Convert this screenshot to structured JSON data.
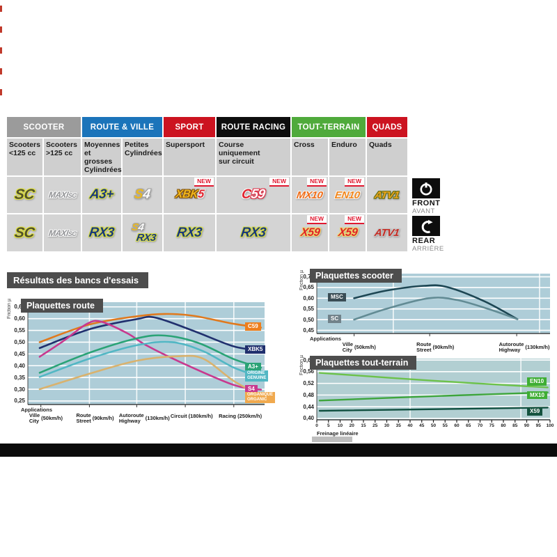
{
  "results_title": "Résultats des bancs d'essais",
  "new_label": "NEW",
  "axle": {
    "front": {
      "en": "FRONT",
      "fr": "AVANT"
    },
    "rear": {
      "en": "REAR",
      "fr": "ARRIÈRE"
    }
  },
  "table": {
    "categories": [
      {
        "label": "SCOOTER",
        "color": "#9b9b9b",
        "span": 2
      },
      {
        "label": "ROUTE & VILLE",
        "color": "#1b74ba",
        "span": 2
      },
      {
        "label": "SPORT",
        "color": "#cc1320",
        "span": 1
      },
      {
        "label": "ROUTE RACING",
        "color": "#0e0e0e",
        "span": 1
      },
      {
        "label": "TOUT-TERRAIN",
        "color": "#4faa3b",
        "span": 2
      },
      {
        "label": "QUADS",
        "color": "#cc1320",
        "span": 1
      }
    ],
    "columns": [
      "Scooters\n<125 cc",
      "Scooters\n>125 cc",
      "Moyennes\net grosses\nCylindrées",
      "Petites\nCylindrées",
      "Supersport",
      "Course\nuniquement\nsur circuit",
      "Cross",
      "Enduro",
      "Quads"
    ],
    "front_row": [
      {
        "logos": [
          {
            "t": "SC",
            "s": "sc"
          }
        ]
      },
      {
        "logos": [
          {
            "t": "MAXI",
            "sub": "SC",
            "s": "maxisc"
          }
        ]
      },
      {
        "logos": [
          {
            "t": "A3+",
            "s": "a3"
          }
        ]
      },
      {
        "logos": [
          {
            "parts": [
              {
                "t": "S",
                "c": "p-gold2"
              },
              {
                "t": "4",
                "c": "p-silver"
              }
            ],
            "s": "s4"
          }
        ]
      },
      {
        "logos": [
          {
            "parts": [
              {
                "t": "XBK",
                "c": "p-gold"
              },
              {
                "t": "5",
                "c": "p-red"
              }
            ],
            "s": "xbk5"
          }
        ],
        "isNew": true
      },
      {
        "logos": [
          {
            "parts": [
              {
                "t": "C",
                "c": "p-red"
              },
              {
                "t": "59",
                "c": "p-wr"
              }
            ],
            "s": "c59"
          }
        ],
        "isNew": true
      },
      {
        "logos": [
          {
            "t": "MX10",
            "s": "mx10"
          }
        ],
        "isNew": true
      },
      {
        "logos": [
          {
            "t": "EN10",
            "s": "en10"
          }
        ],
        "isNew": true
      },
      {
        "logos": [
          {
            "t": "ATV1",
            "s": "atv1a"
          }
        ]
      }
    ],
    "rear_row": [
      {
        "logos": [
          {
            "t": "SC",
            "s": "sc"
          }
        ]
      },
      {
        "logos": [
          {
            "t": "MAXI",
            "sub": "SC",
            "s": "maxisc"
          }
        ]
      },
      {
        "logos": [
          {
            "t": "RX3",
            "s": "rx3"
          }
        ]
      },
      {
        "logos": [
          {
            "parts": [
              {
                "t": "S",
                "c": "p-gold2"
              },
              {
                "t": "4",
                "c": "p-silver"
              }
            ],
            "s": "s4"
          },
          {
            "t": "RX3",
            "s": "rx3"
          }
        ]
      },
      {
        "logos": [
          {
            "t": "RX3",
            "s": "rx3"
          }
        ]
      },
      {
        "logos": [
          {
            "t": "RX3",
            "s": "rx3"
          }
        ]
      },
      {
        "logos": [
          {
            "t": "X59",
            "s": "x59"
          }
        ],
        "isNew": true
      },
      {
        "logos": [
          {
            "t": "X59",
            "s": "x59"
          }
        ],
        "isNew": true
      },
      {
        "logos": [
          {
            "t": "ATV1",
            "s": "atv1b"
          }
        ]
      }
    ]
  },
  "chart_data": [
    {
      "id": "route",
      "type": "line",
      "title": "Plaquettes route",
      "ylabel": "Friction µ",
      "xlabel": "Applications",
      "bg": "#aecdd8",
      "ylim": [
        0.25,
        0.65
      ],
      "yticks": [
        {
          "label": "0,65",
          "v": 0.65
        },
        {
          "label": "0,60",
          "v": 0.6
        },
        {
          "label": "0,55",
          "v": 0.55
        },
        {
          "label": "0,50",
          "v": 0.5
        },
        {
          "label": "0,45",
          "v": 0.45
        },
        {
          "label": "0,40",
          "v": 0.4
        },
        {
          "label": "0,35",
          "v": 0.35
        },
        {
          "label": "0,30",
          "v": 0.3
        },
        {
          "label": "0,25",
          "v": 0.25
        }
      ],
      "xticks": [
        {
          "f": 0.055,
          "lines": [
            "Ville",
            "City"
          ],
          "speed": "(50km/h)"
        },
        {
          "f": 0.26,
          "lines": [
            "Route",
            "Street"
          ],
          "speed": "(90km/h)"
        },
        {
          "f": 0.46,
          "lines": [
            "Autoroute",
            "Highway"
          ],
          "speed": "(130km/h)"
        },
        {
          "f": 0.665,
          "lines": [
            "Circuit"
          ],
          "speed": "(180km/h)"
        },
        {
          "f": 0.87,
          "lines": [
            "Racing"
          ],
          "speed": "(250km/h)"
        }
      ],
      "series": [
        {
          "name": "C59",
          "color": "#e0791d",
          "points": [
            [
              0.05,
              0.5
            ],
            [
              0.26,
              0.575
            ],
            [
              0.46,
              0.61
            ],
            [
              0.58,
              0.62
            ],
            [
              0.7,
              0.612
            ],
            [
              0.87,
              0.578
            ],
            [
              0.985,
              0.562
            ]
          ]
        },
        {
          "name": "XBK5",
          "color": "#20306e",
          "points": [
            [
              0.05,
              0.475
            ],
            [
              0.26,
              0.555
            ],
            [
              0.46,
              0.598
            ],
            [
              0.54,
              0.604
            ],
            [
              0.7,
              0.548
            ],
            [
              0.87,
              0.482
            ],
            [
              0.985,
              0.465
            ]
          ]
        },
        {
          "name": "S4",
          "color": "#c8388e",
          "points": [
            [
              0.05,
              0.438
            ],
            [
              0.15,
              0.505
            ],
            [
              0.25,
              0.578
            ],
            [
              0.31,
              0.587
            ],
            [
              0.42,
              0.538
            ],
            [
              0.5,
              0.487
            ],
            [
              0.66,
              0.408
            ],
            [
              0.87,
              0.318
            ],
            [
              0.985,
              0.298
            ]
          ]
        },
        {
          "name": "A3+",
          "color": "#2aa376",
          "points": [
            [
              0.05,
              0.37
            ],
            [
              0.26,
              0.455
            ],
            [
              0.46,
              0.516
            ],
            [
              0.58,
              0.528
            ],
            [
              0.72,
              0.497
            ],
            [
              0.87,
              0.428
            ],
            [
              0.985,
              0.392
            ]
          ]
        },
        {
          "name": "ORIGINE GENUINE",
          "color": "#52b7c4",
          "points": [
            [
              0.05,
              0.352
            ],
            [
              0.26,
              0.43
            ],
            [
              0.46,
              0.487
            ],
            [
              0.61,
              0.5
            ],
            [
              0.74,
              0.462
            ],
            [
              0.87,
              0.392
            ],
            [
              0.985,
              0.352
            ]
          ]
        },
        {
          "name": "ORGANIQUE ORGANIC",
          "color": "#d9b26e",
          "points": [
            [
              0.05,
              0.3
            ],
            [
              0.26,
              0.366
            ],
            [
              0.46,
              0.421
            ],
            [
              0.63,
              0.44
            ],
            [
              0.74,
              0.43
            ],
            [
              0.87,
              0.335
            ],
            [
              0.985,
              0.272
            ]
          ]
        }
      ],
      "badges": [
        {
          "label": "C59",
          "bg": "#ee7f1d",
          "v": 0.562
        },
        {
          "label": "XBK5",
          "bg": "#20306e",
          "v": 0.465
        },
        {
          "label": "A3+",
          "bg": "#2aa376",
          "v": 0.392
        },
        {
          "lines": [
            "ORIGINE",
            "GENUINE"
          ],
          "bg": "#52b7c4",
          "v": 0.352
        },
        {
          "label": "S4",
          "bg": "#c8388e",
          "v": 0.298
        },
        {
          "lines": [
            "ORGANIQUE",
            "ORGANIC"
          ],
          "bg": "#f0a94e",
          "v": 0.262
        }
      ]
    },
    {
      "id": "scooter",
      "type": "line",
      "title": "Plaquettes scooter",
      "ylabel": "Friction µ",
      "xlabel": "Applications",
      "bg": "#aecdd8",
      "ylim": [
        0.45,
        0.7
      ],
      "yticks": [
        {
          "label": "0,70",
          "v": 0.7
        },
        {
          "label": "0,65",
          "v": 0.65
        },
        {
          "label": "0,60",
          "v": 0.6
        },
        {
          "label": "0,55",
          "v": 0.55
        },
        {
          "label": "0,50",
          "v": 0.5
        },
        {
          "label": "0,45",
          "v": 0.45
        }
      ],
      "xticks": [
        {
          "f": 0.16,
          "lines": [
            "Ville",
            "City"
          ],
          "speed": "(50km/h)"
        },
        {
          "f": 0.484,
          "lines": [
            "Route",
            "Street"
          ],
          "speed": "(90km/h)"
        },
        {
          "f": 0.857,
          "lines": [
            "Autoroute",
            "Highway"
          ],
          "speed": "(130km/h)"
        }
      ],
      "series": [
        {
          "name": "MSC",
          "color": "#1d4653",
          "points": [
            [
              0.16,
              0.6
            ],
            [
              0.3,
              0.636
            ],
            [
              0.46,
              0.658
            ],
            [
              0.56,
              0.652
            ],
            [
              0.72,
              0.585
            ],
            [
              0.86,
              0.502
            ]
          ]
        },
        {
          "name": "SC",
          "color": "#628b94",
          "points": [
            [
              0.16,
              0.5
            ],
            [
              0.3,
              0.551
            ],
            [
              0.48,
              0.6
            ],
            [
              0.6,
              0.592
            ],
            [
              0.74,
              0.548
            ],
            [
              0.86,
              0.502
            ]
          ]
        }
      ],
      "badges": [
        {
          "label": "MSC",
          "bg": "#3a4d55",
          "v": 0.6
        },
        {
          "label": "SC",
          "bg": "#71828a",
          "v": 0.5
        }
      ]
    },
    {
      "id": "tout",
      "type": "line",
      "title": "Plaquettes tout-terrain",
      "ylabel": "Friction µ",
      "xlabel": "Freinage linéaire",
      "bg": "#b2cfd2",
      "ylim": [
        0.4,
        0.6
      ],
      "yticks": [
        {
          "label": "0,60",
          "v": 0.6
        },
        {
          "label": "0,56",
          "v": 0.56
        },
        {
          "label": "0,52",
          "v": 0.52
        },
        {
          "label": "0,48",
          "v": 0.48
        },
        {
          "label": "0,44",
          "v": 0.44
        },
        {
          "label": "0,40",
          "v": 0.4
        }
      ],
      "xticklabels": [
        "0",
        "5",
        "10",
        "20",
        "15",
        "25",
        "30",
        "35",
        "40",
        "45",
        "50",
        "55",
        "60",
        "65",
        "70",
        "75",
        "80",
        "85",
        "90",
        "95",
        "100"
      ],
      "series": [
        {
          "name": "EN10",
          "color": "#6cc24a",
          "points": [
            [
              0.012,
              0.556
            ],
            [
              0.5,
              0.529
            ],
            [
              0.99,
              0.506
            ]
          ]
        },
        {
          "name": "MX10",
          "color": "#3da53c",
          "points": [
            [
              0.012,
              0.461
            ],
            [
              0.5,
              0.476
            ],
            [
              0.99,
              0.489
            ]
          ]
        },
        {
          "name": "X59",
          "color": "#0f4f3f",
          "points": [
            [
              0.012,
              0.426
            ],
            [
              0.99,
              0.437
            ]
          ]
        }
      ],
      "badges": [
        {
          "label": "EN10",
          "bg": "#3fae34",
          "v": 0.524
        },
        {
          "label": "MX10",
          "bg": "#3fae34",
          "v": 0.477
        },
        {
          "label": "X59",
          "bg": "#14523e",
          "v": 0.421
        }
      ]
    }
  ]
}
